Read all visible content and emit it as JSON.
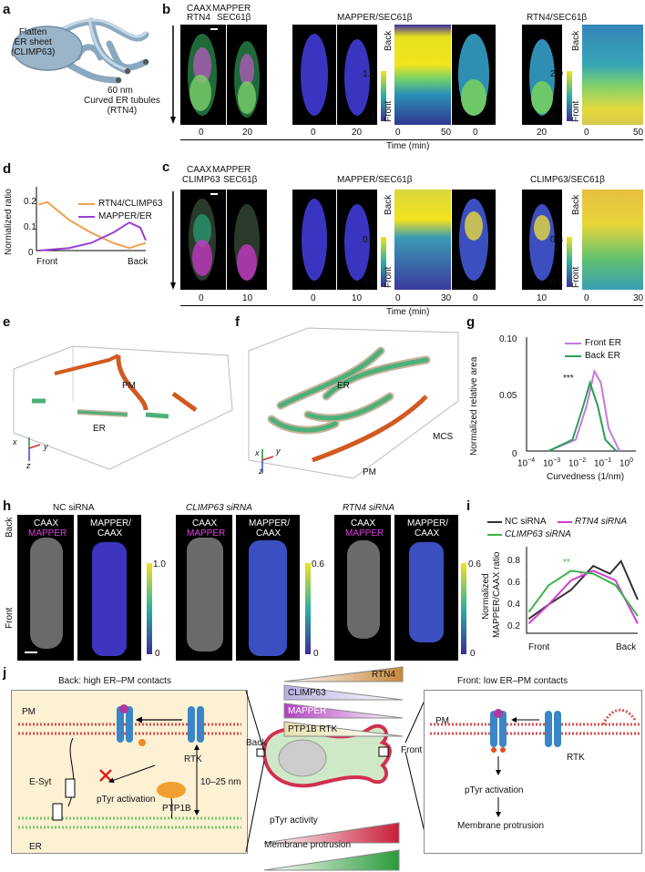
{
  "panels": {
    "a": "a",
    "b": "b",
    "c": "c",
    "d": "d",
    "e": "e",
    "f": "f",
    "g": "g",
    "h": "h",
    "i": "i",
    "j": "j"
  },
  "a": {
    "sheet": "Flatten\nER sheet\n(CLIMP63)",
    "nm": "60 nm",
    "tubules": "Curved ER tubules\n(RTN4)"
  },
  "b": {
    "ch1": "CAAX",
    "ch2": "MAPPER",
    "ch3": "RTN4",
    "ch4": "SEC61β",
    "title_mid": "MAPPER/SEC61β",
    "title_right": "RTN4/SEC61β",
    "cb1": [
      "1.0",
      "0.1"
    ],
    "cb2": [
      "2.0",
      "0.1"
    ],
    "times": [
      "0",
      "20",
      "0",
      "20",
      "0",
      "50",
      "0",
      "20",
      "0",
      "50"
    ],
    "back": "Back",
    "front": "Front",
    "timeaxis": "Time (min)"
  },
  "c": {
    "ch1": "CAAX",
    "ch2": "MAPPER",
    "ch3": "CLIMP63",
    "ch4": "SEC61β",
    "title_mid": "MAPPER/SEC61β",
    "title_right": "CLIMP63/SEC61β",
    "cb1": [
      "0.7",
      "0.1"
    ],
    "cb2": [
      "0.6",
      "0.1"
    ],
    "times": [
      "0",
      "10",
      "0",
      "10",
      "0",
      "30",
      "0",
      "10",
      "0",
      "30"
    ],
    "back": "Back",
    "front": "Front",
    "timeaxis": "Time (min)"
  },
  "d": {
    "ylabel": "Normalized ratio",
    "xticks": [
      "Front",
      "Back"
    ],
    "yticks": [
      "0",
      "0.1",
      "0.2"
    ],
    "legend": [
      "RTN4/CLIMP63",
      "MAPPER/ER"
    ]
  },
  "e": {
    "pm": "PM",
    "er": "ER",
    "axes": [
      "x",
      "y",
      "z"
    ]
  },
  "f": {
    "er": "ER",
    "mcs": "MCS",
    "pm": "PM",
    "axes": [
      "x",
      "y",
      "z"
    ]
  },
  "g": {
    "ylabel": "Normalized relative area",
    "xlabel": "Curvedness (1/nm)",
    "legend": [
      "Front ER",
      "Back ER"
    ],
    "sig": "***",
    "yticks": [
      "0",
      "0.05",
      "0.10"
    ],
    "xticks": [
      "10",
      "10",
      "10",
      "10",
      "10"
    ],
    "xexp": [
      "−4",
      "−3",
      "−2",
      "−1",
      "0"
    ]
  },
  "h": {
    "cond": [
      "NC siRNA",
      "CLIMP63 siRNA",
      "RTN4 siRNA"
    ],
    "caax": "CAAX",
    "mapper": "MAPPER",
    "ratio1": "MAPPER/",
    "ratio2": "CAAX",
    "cb": [
      [
        "1.0",
        "0"
      ],
      [
        "0.6",
        "0"
      ],
      [
        "0.6",
        "0"
      ]
    ],
    "back": "Back",
    "front": "Front"
  },
  "i": {
    "ylabel1": "Normalized",
    "ylabel2": "MAPPER/CAAX ratio",
    "yticks": [
      "0.2",
      "0.4",
      "0.6",
      "0.8"
    ],
    "xticks": [
      "Front",
      "Back"
    ],
    "legend": [
      "NC siRNA",
      "RTN4 siRNA",
      "CLIMP63 siRNA"
    ],
    "sig1": "**",
    "sig2": "*"
  },
  "j": {
    "back_title": "Back: high ER–PM contacts",
    "front_title": "Front: low ER–PM contacts",
    "pm": "PM",
    "er": "ER",
    "rtk": "RTK",
    "esyt": "E-Syt",
    "ptp": "PTP1B",
    "dist": "10–25 nm",
    "pty": "pTyr activation",
    "front_pty": "pTyr activation",
    "front_prot": "Membrane protrusion",
    "grads": [
      "RTN4",
      "CLIMP63",
      "MAPPER",
      "PTP1B RTK"
    ],
    "back": "Back",
    "front": "Front",
    "grad_pty": "pTyr activity",
    "grad_prot": "Membrane protrusion"
  },
  "colors": {
    "yellow": "#e8d41a",
    "cyan": "#2ec4d6",
    "green": "#3cb44b",
    "magenta": "#d23fd2",
    "orange": "#f0a050",
    "purple": "#9a3fd6",
    "green2": "#1f9a4a",
    "pm": "#d9534f",
    "er": "#7bc86c",
    "plum": "#c878e0",
    "darkgreen": "#2e9e5a"
  }
}
